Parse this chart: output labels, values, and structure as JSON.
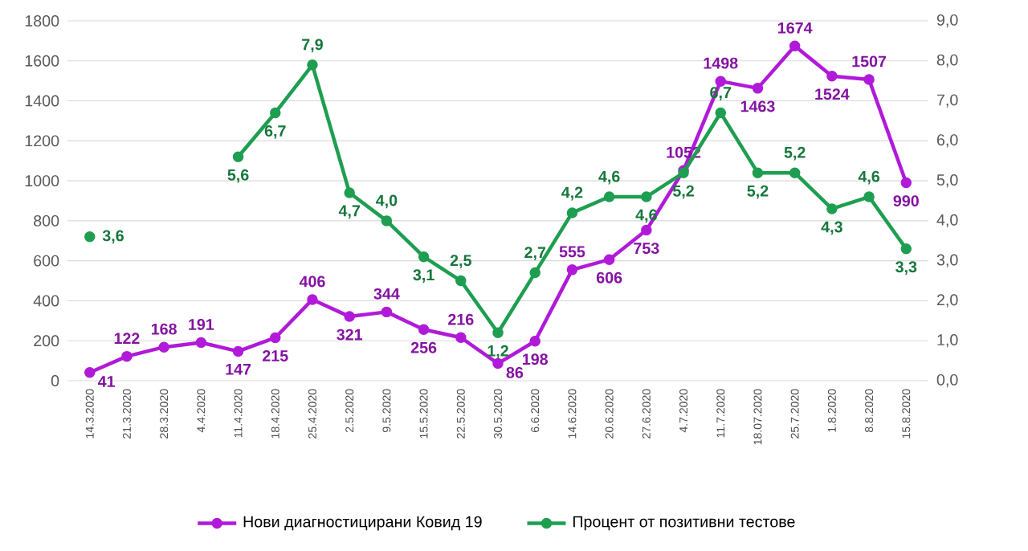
{
  "chart_data": {
    "type": "line",
    "categories": [
      "14.3.2020",
      "21.3.2020",
      "28.3.2020",
      "4.4.2020",
      "11.4.2020",
      "18.4.2020",
      "25.4.2020",
      "2.5.2020",
      "9.5.2020",
      "15.5.2020",
      "22.5.2020",
      "30.5.2020",
      "6.6.2020",
      "14.6.2020",
      "20.6.2020",
      "27.6.2020",
      "4.7.2020",
      "11.7.2020",
      "18.07.2020",
      "25.7.2020",
      "1.8.2020",
      "8.8.2020",
      "15.8.2020"
    ],
    "series": [
      {
        "name": "Нови диагностицирани Ковид 19",
        "color": "#b01ad8",
        "values": [
          41,
          122,
          168,
          191,
          147,
          215,
          406,
          321,
          344,
          256,
          216,
          86,
          198,
          555,
          606,
          753,
          1052,
          1498,
          1463,
          1674,
          1524,
          1507,
          990
        ],
        "value_labels": [
          "41",
          "122",
          "168",
          "191",
          "147",
          "215",
          "406",
          "321",
          "344",
          "256",
          "216",
          "86",
          "198",
          "555",
          "606",
          "753",
          "1052",
          "1498",
          "1463",
          "1674",
          "1524",
          "1507",
          "990"
        ]
      },
      {
        "name": "Процент от позитивни тестове",
        "color": "#1e9e50",
        "axis": "y2",
        "values": [
          3.6,
          null,
          null,
          null,
          5.6,
          6.7,
          7.9,
          4.7,
          4.0,
          3.1,
          2.5,
          1.2,
          2.7,
          4.2,
          4.6,
          4.6,
          5.2,
          6.7,
          5.2,
          5.2,
          4.3,
          4.6,
          3.3
        ],
        "value_labels": [
          "3,6",
          null,
          null,
          null,
          "5,6",
          "6,7",
          "7,9",
          "4,7",
          "4,0",
          "3,1",
          "2,5",
          "1,2",
          "2,7",
          "4,2",
          "4,6",
          "4,6",
          "5,2",
          "6,7",
          "5,2",
          "5,2",
          "4,3",
          "4,6",
          "3,3"
        ]
      }
    ],
    "ylim": [
      0,
      1800
    ],
    "yticks": [
      0,
      200,
      400,
      600,
      800,
      1000,
      1200,
      1400,
      1600,
      1800
    ],
    "y2lim": [
      0,
      9
    ],
    "y2ticks": [
      {
        "value": 0,
        "label": "0,0"
      },
      {
        "value": 1,
        "label": "1,0"
      },
      {
        "value": 2,
        "label": "2,0"
      },
      {
        "value": 3,
        "label": "3,0"
      },
      {
        "value": 4,
        "label": "4,0"
      },
      {
        "value": 5,
        "label": "5,0"
      },
      {
        "value": 6,
        "label": "6,0"
      },
      {
        "value": 7,
        "label": "7,0"
      },
      {
        "value": 8,
        "label": "8,0"
      },
      {
        "value": 9,
        "label": "9,0"
      }
    ],
    "grid": "y",
    "legend": "bottom",
    "marker": "circle",
    "line_style": "solid"
  }
}
